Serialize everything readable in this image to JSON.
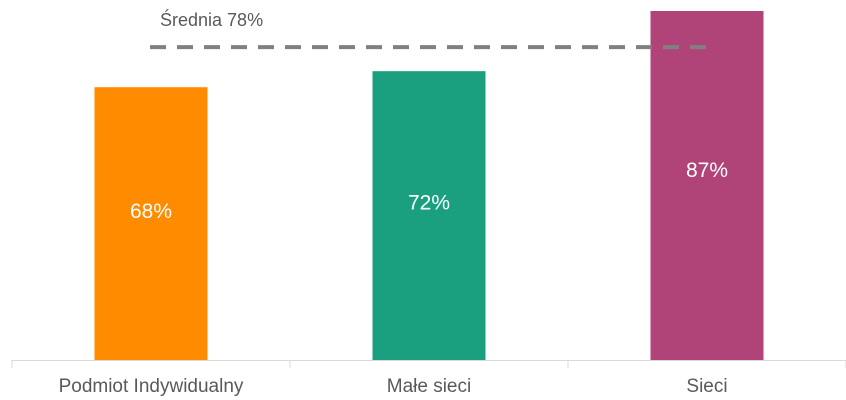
{
  "chart_data": {
    "type": "bar",
    "categories": [
      "Podmiot Indywidualny",
      "Małe sieci",
      "Sieci"
    ],
    "values": [
      68,
      72,
      87
    ],
    "value_labels": [
      "68%",
      "72%",
      "87%"
    ],
    "bar_colors": [
      "#FF8C00",
      "#1BA07F",
      "#B04478"
    ],
    "ylim": [
      0,
      87
    ],
    "grid": false,
    "reference_line": {
      "value": 78,
      "label": "Średnia 78%",
      "color": "#808080",
      "style": "dashed"
    },
    "axis_color": "#D9D9D9",
    "label_color": "#595959"
  }
}
